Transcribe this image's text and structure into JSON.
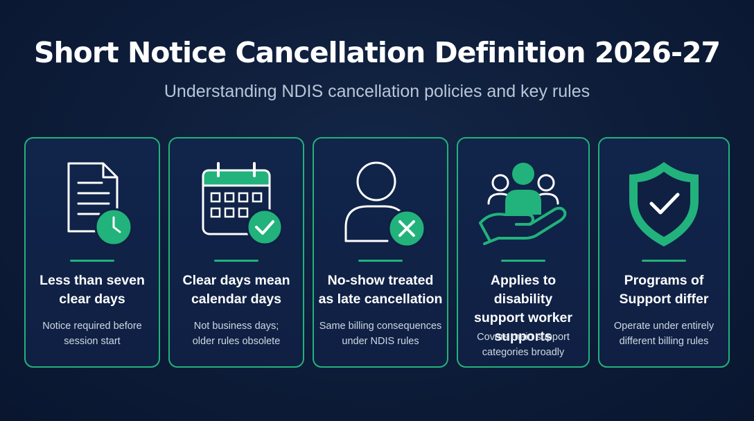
{
  "header": {
    "title": "Short Notice Cancellation Definition 2026-27",
    "subtitle": "Understanding NDIS cancellation policies and key rules"
  },
  "colors": {
    "accent": "#22b27c",
    "background": "#0d1c38",
    "card_border": "#22b27c"
  },
  "cards": [
    {
      "icon": "document-clock-icon",
      "heading_lines": [
        "Less than seven",
        "clear days"
      ],
      "desc_lines": [
        "Notice required before",
        "session start"
      ]
    },
    {
      "icon": "calendar-check-icon",
      "heading_lines": [
        "Clear days mean",
        "calendar days"
      ],
      "desc_lines": [
        "Not business days;",
        "older rules obsolete"
      ]
    },
    {
      "icon": "user-cancel-icon",
      "heading_lines": [
        "No-show treated",
        "as late cancellation"
      ],
      "desc_lines": [
        "Same billing consequences",
        "under NDIS rules"
      ]
    },
    {
      "icon": "hand-people-icon",
      "heading_lines": [
        "Applies to disability",
        "support worker",
        "supports"
      ],
      "desc_lines": [
        "Covers main support",
        "categories broadly"
      ]
    },
    {
      "icon": "shield-check-icon",
      "heading_lines": [
        "Programs of",
        "Support differ"
      ],
      "desc_lines": [
        "Operate under entirely",
        "different billing rules"
      ]
    }
  ]
}
